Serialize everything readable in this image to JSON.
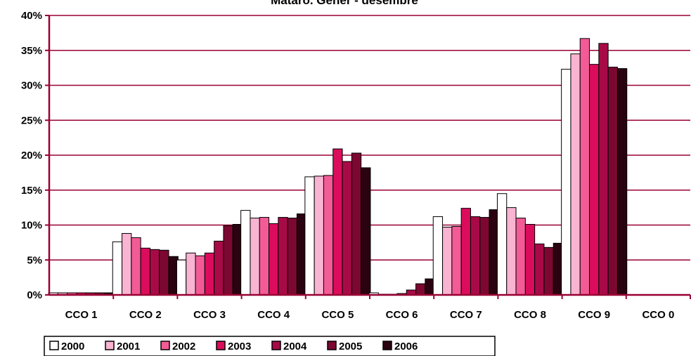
{
  "chart_data": {
    "type": "bar",
    "title": "Mataró. Gener - desembre",
    "categories": [
      "CCO 1",
      "CCO 2",
      "CCO 3",
      "CCO 4",
      "CCO 5",
      "CCO 6",
      "CCO 7",
      "CCO 8",
      "CCO 9",
      "CCO 0"
    ],
    "ylim": [
      0,
      40
    ],
    "yticks": [
      "0%",
      "5%",
      "10%",
      "15%",
      "20%",
      "25%",
      "30%",
      "35%",
      "40%"
    ],
    "grid": true,
    "legend_position": "bottom",
    "series": [
      {
        "name": "2000",
        "color": "#ffffff",
        "values": [
          0.3,
          7.6,
          5.0,
          12.1,
          16.9,
          0.3,
          11.2,
          14.5,
          32.3,
          0
        ]
      },
      {
        "name": "2001",
        "color": "#f9b4d2",
        "values": [
          0.3,
          8.8,
          6.0,
          11.0,
          17.0,
          0.1,
          9.7,
          12.5,
          34.5,
          0
        ]
      },
      {
        "name": "2002",
        "color": "#f25b96",
        "values": [
          0.3,
          8.2,
          5.6,
          11.1,
          17.1,
          0.1,
          9.8,
          11.0,
          36.7,
          0
        ]
      },
      {
        "name": "2003",
        "color": "#dc0c5c",
        "values": [
          0.3,
          6.7,
          6.0,
          10.2,
          20.9,
          0.2,
          12.4,
          10.1,
          33.0,
          0
        ]
      },
      {
        "name": "2004",
        "color": "#a80a48",
        "values": [
          0.3,
          6.5,
          7.7,
          11.1,
          19.1,
          0.7,
          11.2,
          7.3,
          36.0,
          0
        ]
      },
      {
        "name": "2005",
        "color": "#7c0832",
        "values": [
          0.3,
          6.4,
          9.9,
          11.0,
          20.3,
          1.6,
          11.1,
          6.8,
          32.6,
          0
        ]
      },
      {
        "name": "2006",
        "color": "#2a0210",
        "values": [
          0.3,
          5.5,
          10.1,
          11.6,
          18.2,
          2.3,
          12.2,
          7.4,
          32.4,
          0
        ]
      }
    ]
  },
  "colors": {
    "grid": "#990033",
    "axis": "#990033",
    "bar_outline": "#000000"
  }
}
